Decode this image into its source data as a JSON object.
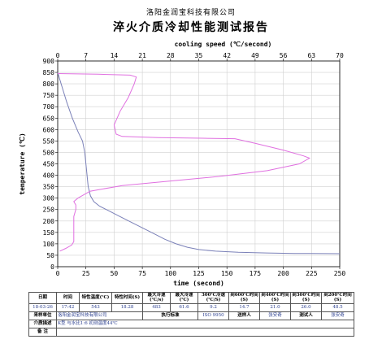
{
  "company": "洛阳金润宝科技有限公司",
  "title": "淬火介质冷却性能测试报告",
  "chart_data": {
    "type": "line",
    "x_bottom": {
      "label": "time (second)",
      "range": [
        0,
        250
      ],
      "ticks": [
        0,
        25,
        50,
        75,
        100,
        125,
        150,
        175,
        200,
        225,
        250
      ]
    },
    "x_top": {
      "label": "cooling speed (℃/second)",
      "range": [
        0,
        70
      ],
      "ticks": [
        0,
        7,
        14,
        21,
        28,
        35,
        42,
        49,
        56,
        63,
        70
      ]
    },
    "y": {
      "label": "temperature (℃)",
      "range": [
        0,
        900
      ],
      "ticks": [
        0,
        50,
        100,
        150,
        200,
        250,
        300,
        350,
        400,
        450,
        500,
        550,
        600,
        650,
        700,
        750,
        800,
        850,
        900
      ]
    },
    "grid": true,
    "series": [
      {
        "x_axis": "bottom",
        "color": "#7a80b8",
        "points": [
          [
            0,
            850
          ],
          [
            3,
            800
          ],
          [
            8,
            720
          ],
          [
            13,
            650
          ],
          [
            18,
            590
          ],
          [
            22,
            550
          ],
          [
            24,
            500
          ],
          [
            25,
            450
          ],
          [
            26,
            400
          ],
          [
            27,
            350
          ],
          [
            29,
            310
          ],
          [
            32,
            285
          ],
          [
            37,
            265
          ],
          [
            45,
            245
          ],
          [
            55,
            220
          ],
          [
            65,
            195
          ],
          [
            75,
            170
          ],
          [
            85,
            145
          ],
          [
            95,
            120
          ],
          [
            105,
            100
          ],
          [
            115,
            85
          ],
          [
            125,
            75
          ],
          [
            140,
            68
          ],
          [
            160,
            63
          ],
          [
            185,
            60
          ],
          [
            210,
            58
          ],
          [
            250,
            57
          ]
        ]
      },
      {
        "x_axis": "top",
        "color": "#e070e0",
        "points": [
          [
            0,
            845
          ],
          [
            10,
            842
          ],
          [
            18,
            838
          ],
          [
            19.5,
            830
          ],
          [
            19,
            800
          ],
          [
            17.5,
            740
          ],
          [
            15.5,
            680
          ],
          [
            14,
            620
          ],
          [
            14.5,
            580
          ],
          [
            16,
            570
          ],
          [
            25,
            565
          ],
          [
            36,
            562
          ],
          [
            44,
            560
          ],
          [
            49,
            540
          ],
          [
            56,
            510
          ],
          [
            61,
            485
          ],
          [
            62.5,
            475
          ],
          [
            60,
            450
          ],
          [
            52,
            420
          ],
          [
            40,
            395
          ],
          [
            28,
            375
          ],
          [
            16,
            355
          ],
          [
            8,
            330
          ],
          [
            5,
            300
          ],
          [
            4,
            285
          ],
          [
            4.5,
            270
          ],
          [
            4.5,
            250
          ],
          [
            4,
            220
          ],
          [
            4,
            180
          ],
          [
            4,
            140
          ],
          [
            4,
            110
          ],
          [
            3.5,
            95
          ],
          [
            2,
            80
          ],
          [
            0.5,
            68
          ]
        ]
      }
    ]
  },
  "table": {
    "headers": [
      "日期",
      "时间",
      "特性温度(℃)",
      "特性时间(S)",
      "最大冷速(℃/s)",
      "最大冷速(℃)",
      "300℃冷速(℃/S)",
      "到600℃时间(S)",
      "到400℃时间(S)",
      "到300℃时间(S)",
      "到200℃时间(S)"
    ],
    "values": [
      "18-03-26",
      "17:42",
      "543",
      "18.28",
      "483",
      "61.6",
      "9.2",
      "14.7",
      "21.0",
      "26.0",
      "48.5"
    ],
    "row2": {
      "sample_label": "来样单位",
      "sample_value": "洛阳金润宝科技有限公司",
      "standard_label": "执行标准",
      "standard_value": "ISO 9950",
      "sender_label": "送样人",
      "sender_value": "张安奇",
      "tester_label": "测试人",
      "tester_value": "张安奇"
    },
    "row3": {
      "label": "介质描述",
      "value": "K型 与水比1:6   初测温度44℃"
    },
    "row4": {
      "label": "备    注",
      "value": ""
    }
  }
}
